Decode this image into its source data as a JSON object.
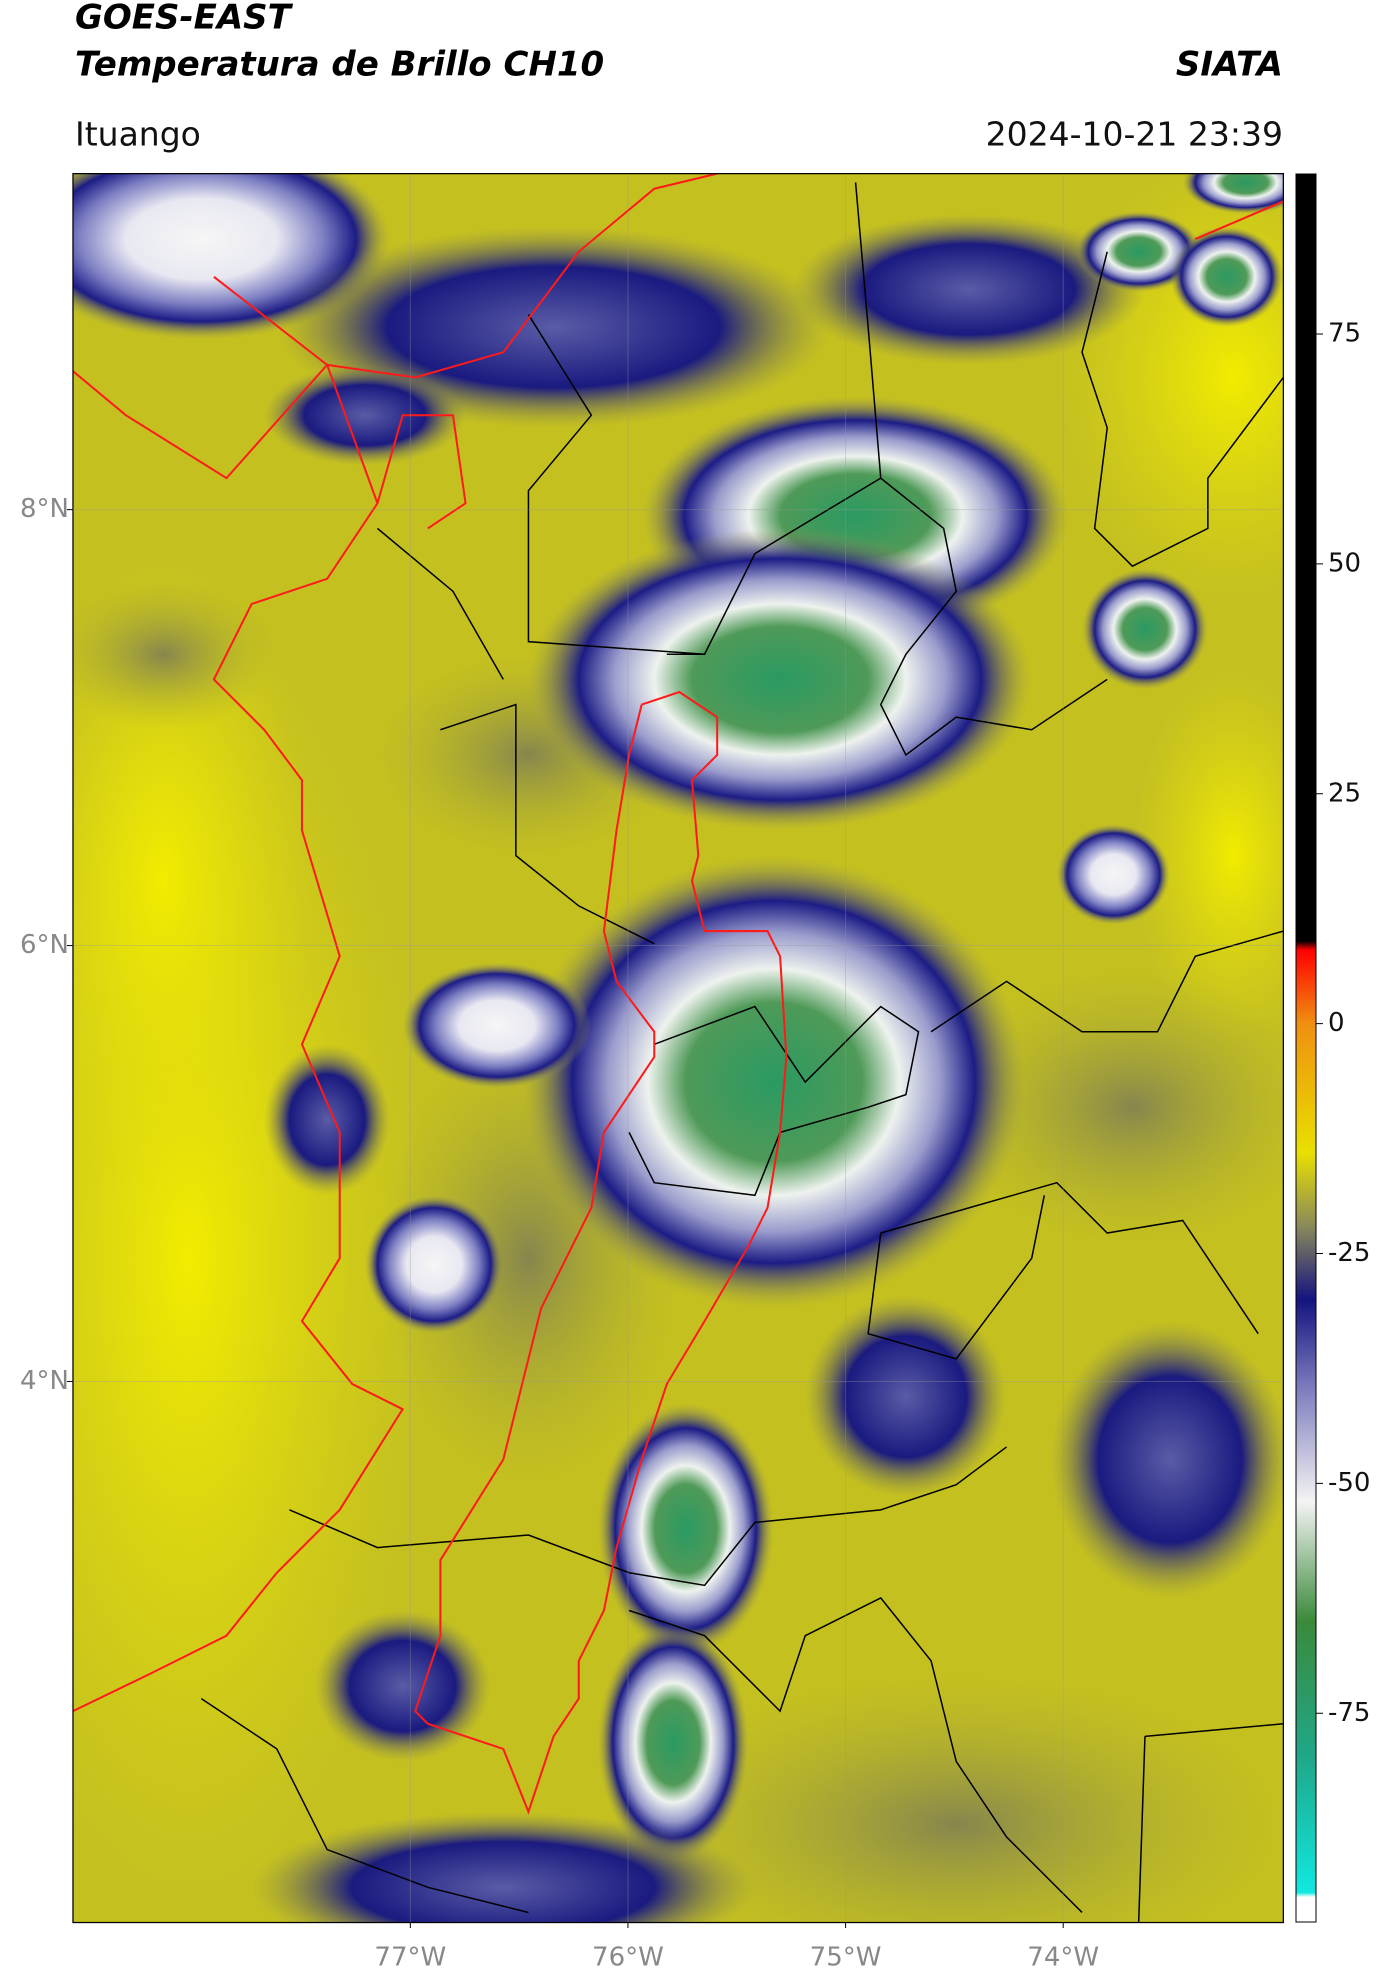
{
  "chart_data": {
    "type": "satellite-map",
    "title": "GOES-EAST",
    "subtitle": "Temperatura de Brillo CH10",
    "source": "SIATA",
    "region": "Ituango",
    "timestamp": "2024-10-21 23:39",
    "xlim": [
      -78.55,
      -72.99
    ],
    "ylim": [
      1.52,
      9.54
    ],
    "xticks": [
      {
        "value": -77,
        "label": "77°W"
      },
      {
        "value": -76,
        "label": "76°W"
      },
      {
        "value": -75,
        "label": "75°W"
      },
      {
        "value": -74,
        "label": "74°W"
      }
    ],
    "yticks": [
      {
        "value": 8,
        "label": "8°N"
      },
      {
        "value": 6,
        "label": "6°N"
      },
      {
        "value": 4,
        "label": "4°N"
      }
    ],
    "grid": true,
    "colorbar": {
      "lim": [
        -97.7,
        92.4
      ],
      "ticks": [
        75,
        50,
        25,
        0,
        -25,
        -50,
        -75
      ],
      "stops": [
        {
          "value": -97.7,
          "color": "#ffffff"
        },
        {
          "value": -95,
          "color": "#ffffff"
        },
        {
          "value": -94.5,
          "color": "#10e8e0"
        },
        {
          "value": -80,
          "color": "#1fa88a"
        },
        {
          "value": -65,
          "color": "#3a8a3a"
        },
        {
          "value": -52,
          "color": "#f4f4f4"
        },
        {
          "value": -40,
          "color": "#8080c0"
        },
        {
          "value": -30,
          "color": "#141480"
        },
        {
          "value": -22,
          "color": "#8a8a5a"
        },
        {
          "value": -14,
          "color": "#e8e000"
        },
        {
          "value": 0,
          "color": "#f09010"
        },
        {
          "value": 8,
          "color": "#ff0000"
        },
        {
          "value": 9,
          "color": "#000000"
        },
        {
          "value": 92.4,
          "color": "#000000"
        }
      ]
    }
  }
}
